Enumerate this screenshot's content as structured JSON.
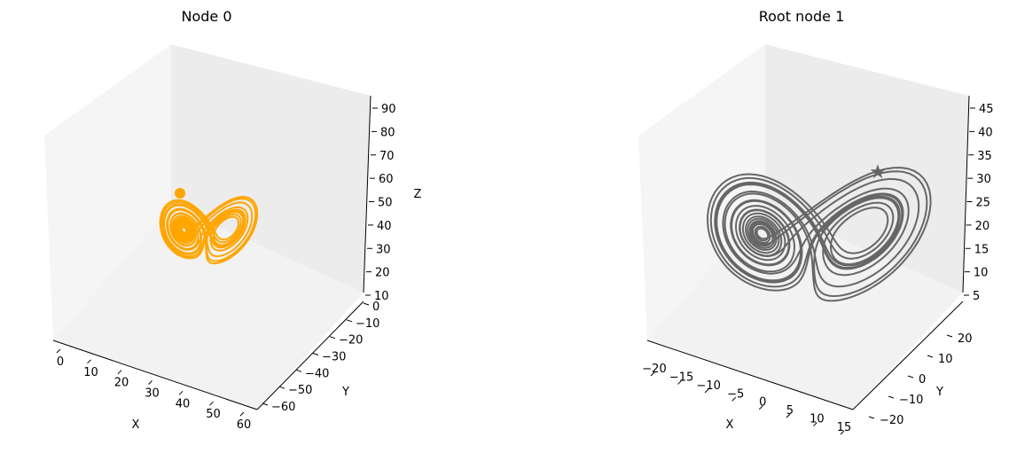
{
  "chart_data": [
    {
      "type": "line",
      "title": "Node 0",
      "xlabel": "X",
      "ylabel": "Y",
      "zlabel": "Z",
      "xticks": [
        "0",
        "10",
        "20",
        "30",
        "40",
        "50",
        "60"
      ],
      "yticks": [
        "0",
        "−10",
        "−20",
        "−30",
        "−40",
        "−50",
        "−60"
      ],
      "zticks": [
        "10",
        "20",
        "30",
        "40",
        "50",
        "60",
        "70",
        "80",
        "90"
      ],
      "xlim": [
        0,
        60
      ],
      "ylim": [
        -60,
        0
      ],
      "zlim": [
        10,
        90
      ],
      "series": [
        {
          "color": "#FFA500",
          "trajectory": "Lorenz attractor (two lobes)",
          "lobe_centers_approx": [
            [
              12,
              -25,
              48
            ],
            [
              40,
              -38,
              52
            ]
          ]
        }
      ],
      "grid": false
    },
    {
      "type": "line",
      "title": "Root node 1",
      "xlabel": "X",
      "ylabel": "Y",
      "zlabel": "",
      "xticks": [
        "−20",
        "−15",
        "−10",
        "−5",
        "0",
        "5",
        "10",
        "15"
      ],
      "yticks": [
        "20",
        "10",
        "0",
        "−10",
        "−20"
      ],
      "zticks": [
        "5",
        "10",
        "15",
        "20",
        "25",
        "30",
        "35",
        "40",
        "45"
      ],
      "xlim": [
        -20,
        15
      ],
      "ylim": [
        -20,
        20
      ],
      "zlim": [
        5,
        45
      ],
      "series": [
        {
          "color": "#666666",
          "trajectory": "Lorenz attractor (two lobes)",
          "lobe_centers_approx": [
            [
              -8,
              -8,
              27
            ],
            [
              8,
              8,
              27
            ]
          ]
        }
      ],
      "grid": false
    }
  ]
}
